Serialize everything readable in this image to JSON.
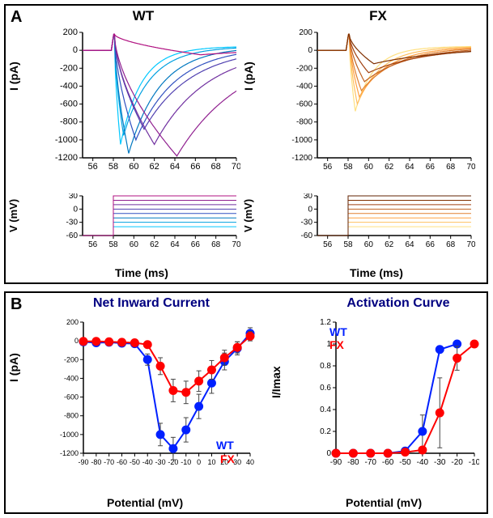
{
  "panelA": {
    "label": "A",
    "wt": {
      "title": "WT",
      "current_chart": {
        "type": "line",
        "ylabel": "I (pA)",
        "xlabel": null,
        "ylim": [
          -1200,
          200
        ],
        "yticks": [
          -1200,
          -1000,
          -800,
          -600,
          -400,
          -200,
          0,
          200
        ],
        "xlim": [
          55,
          70
        ],
        "xticks": [
          56,
          58,
          60,
          62,
          64,
          66,
          68,
          70
        ],
        "trace_colors": [
          "#00c8ff",
          "#00a0e0",
          "#0078c0",
          "#3050c0",
          "#5040b0",
          "#7030a0",
          "#902090",
          "#b01080",
          "#ff8080"
        ],
        "background_color": "#ffffff",
        "axis_color": "#000000",
        "label_fontsize": 14,
        "tick_fontsize": 11,
        "traces": [
          {
            "peak_time": 58.7,
            "peak_value": -1050,
            "half_width": 0.8
          },
          {
            "peak_time": 59.0,
            "peak_value": -950,
            "half_width": 1.0
          },
          {
            "peak_time": 59.5,
            "peak_value": -1150,
            "half_width": 1.2
          },
          {
            "peak_time": 60.2,
            "peak_value": -1000,
            "half_width": 1.5
          },
          {
            "peak_time": 61.0,
            "peak_value": -880,
            "half_width": 1.8
          },
          {
            "peak_time": 62.0,
            "peak_value": -1050,
            "half_width": 2.0
          },
          {
            "peak_time": 64.2,
            "peak_value": -1180,
            "half_width": 2.5
          },
          {
            "peak_time": 66.5,
            "peak_value": -50,
            "half_width": 3.0
          }
        ]
      },
      "voltage_chart": {
        "type": "line",
        "ylabel": "V (mV)",
        "xlabel": "Time (ms)",
        "ylim": [
          -60,
          30
        ],
        "yticks": [
          -60,
          -30,
          0,
          30
        ],
        "xlim": [
          55,
          70
        ],
        "xticks": [
          56,
          58,
          60,
          62,
          64,
          66,
          68,
          70
        ],
        "trace_colors": [
          "#00c8ff",
          "#00a0e0",
          "#0078c0",
          "#3050c0",
          "#5040b0",
          "#7030a0",
          "#902090",
          "#b01080",
          "#ff8080"
        ],
        "step_time": 58,
        "hold_value": -60,
        "step_values": [
          -40,
          -30,
          -20,
          -10,
          0,
          10,
          20,
          30
        ],
        "label_fontsize": 14
      }
    },
    "fx": {
      "title": "FX",
      "current_chart": {
        "type": "line",
        "ylabel": "I (pA)",
        "xlabel": null,
        "ylim": [
          -1200,
          200
        ],
        "yticks": [
          -1200,
          -1000,
          -800,
          -600,
          -400,
          -200,
          0,
          200
        ],
        "xlim": [
          55,
          70
        ],
        "xticks": [
          56,
          58,
          60,
          62,
          64,
          66,
          68,
          70
        ],
        "trace_colors": [
          "#ffe080",
          "#ffc060",
          "#ffa040",
          "#e08030",
          "#c06020",
          "#a04010",
          "#803000",
          "#602000"
        ],
        "background_color": "#ffffff",
        "traces": [
          {
            "peak_time": 58.7,
            "peak_value": -680,
            "half_width": 0.7
          },
          {
            "peak_time": 58.9,
            "peak_value": -600,
            "half_width": 0.9
          },
          {
            "peak_time": 59.1,
            "peak_value": -520,
            "half_width": 1.1
          },
          {
            "peak_time": 59.3,
            "peak_value": -450,
            "half_width": 1.3
          },
          {
            "peak_time": 59.6,
            "peak_value": -350,
            "half_width": 1.6
          },
          {
            "peak_time": 60.0,
            "peak_value": -250,
            "half_width": 2.0
          },
          {
            "peak_time": 60.5,
            "peak_value": -150,
            "half_width": 2.5
          }
        ]
      },
      "voltage_chart": {
        "type": "line",
        "ylabel": "V (mV)",
        "xlabel": "Time (ms)",
        "ylim": [
          -60,
          30
        ],
        "yticks": [
          -60,
          -30,
          0,
          30
        ],
        "xlim": [
          55,
          70
        ],
        "xticks": [
          56,
          58,
          60,
          62,
          64,
          66,
          68,
          70
        ],
        "trace_colors": [
          "#ffe080",
          "#ffc060",
          "#ffa040",
          "#e08030",
          "#c06020",
          "#a04010",
          "#803000",
          "#602000"
        ],
        "step_time": 58,
        "hold_value": -60,
        "step_values": [
          -40,
          -30,
          -20,
          -10,
          0,
          10,
          20,
          30
        ]
      }
    }
  },
  "panelB": {
    "label": "B",
    "netInward": {
      "title": "Net Inward Current",
      "type": "line-scatter",
      "xlabel": "Potential (mV)",
      "ylabel": "I (pA)",
      "ylim": [
        -1200,
        200
      ],
      "yticks": [
        -1200,
        -1000,
        -800,
        -600,
        -400,
        -200,
        0,
        200
      ],
      "xlim": [
        -90,
        40
      ],
      "xticks": [
        -90,
        -80,
        -70,
        -60,
        -50,
        -40,
        -30,
        -20,
        -10,
        0,
        10,
        20,
        30,
        40
      ],
      "marker_size": 5,
      "line_width": 2,
      "title_fontsize": 15,
      "label_fontsize": 13,
      "tick_fontsize": 9,
      "legend": {
        "wt": {
          "label": "WT",
          "color": "#0020ff"
        },
        "fx": {
          "label": "FX",
          "color": "#ff0000"
        }
      },
      "series": {
        "wt": {
          "color": "#0020ff",
          "x": [
            -90,
            -80,
            -70,
            -60,
            -50,
            -40,
            -30,
            -20,
            -10,
            0,
            10,
            20,
            30,
            40
          ],
          "y": [
            -10,
            -20,
            -15,
            -25,
            -30,
            -200,
            -1000,
            -1150,
            -950,
            -700,
            -450,
            -220,
            -80,
            80
          ],
          "err": [
            0,
            0,
            0,
            0,
            0,
            60,
            120,
            120,
            130,
            130,
            110,
            90,
            70,
            60
          ]
        },
        "fx": {
          "color": "#ff0000",
          "x": [
            -90,
            -80,
            -70,
            -60,
            -50,
            -40,
            -30,
            -20,
            -10,
            0,
            10,
            20,
            30,
            40
          ],
          "y": [
            -5,
            -5,
            -10,
            -15,
            -20,
            -40,
            -270,
            -530,
            -550,
            -430,
            -310,
            -180,
            -70,
            50
          ],
          "err": [
            0,
            0,
            0,
            0,
            0,
            20,
            90,
            120,
            120,
            110,
            100,
            80,
            60,
            50
          ]
        }
      }
    },
    "activation": {
      "title": "Activation Curve",
      "type": "line-scatter",
      "xlabel": "Potential (mV)",
      "ylabel": "I/Imax",
      "ylim": [
        0.0,
        1.2
      ],
      "yticks": [
        0.0,
        0.2,
        0.4,
        0.6,
        0.8,
        1.0,
        1.2
      ],
      "xlim": [
        -90,
        -10
      ],
      "xticks": [
        -90,
        -80,
        -70,
        -60,
        -50,
        -40,
        -30,
        -20,
        -10
      ],
      "marker_size": 5,
      "line_width": 2,
      "legend": {
        "wt": {
          "label": "WT",
          "color": "#0020ff"
        },
        "fx": {
          "label": "FX",
          "color": "#ff0000"
        }
      },
      "series": {
        "wt": {
          "color": "#0020ff",
          "x": [
            -90,
            -80,
            -70,
            -60,
            -50,
            -40,
            -30,
            -20
          ],
          "y": [
            0.0,
            0.0,
            0.0,
            0.0,
            0.02,
            0.2,
            0.95,
            1.0
          ],
          "err": [
            0,
            0,
            0,
            0,
            0.02,
            0.15,
            0.03,
            0
          ]
        },
        "fx": {
          "color": "#ff0000",
          "x": [
            -90,
            -80,
            -70,
            -60,
            -50,
            -40,
            -30,
            -20,
            -10
          ],
          "y": [
            0.0,
            0.0,
            0.0,
            0.0,
            0.01,
            0.03,
            0.37,
            0.87,
            1.0
          ],
          "err": [
            0,
            0,
            0,
            0,
            0.01,
            0.02,
            0.32,
            0.11,
            0
          ]
        }
      }
    }
  }
}
